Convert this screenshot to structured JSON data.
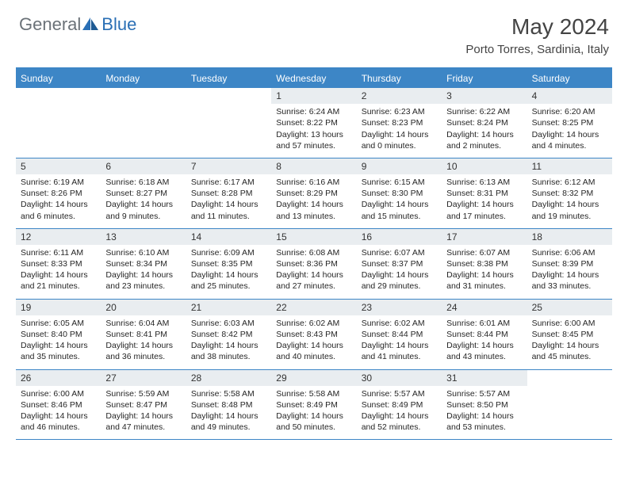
{
  "brand": {
    "text1": "General",
    "text2": "Blue"
  },
  "title": "May 2024",
  "location": "Porto Torres, Sardinia, Italy",
  "colors": {
    "header_bg": "#3d86c6",
    "header_text": "#ffffff",
    "daynum_bg": "#e9edf0",
    "body_text": "#262626",
    "logo_gray": "#6b7278",
    "logo_blue": "#2a6fb5"
  },
  "weekdays": [
    "Sunday",
    "Monday",
    "Tuesday",
    "Wednesday",
    "Thursday",
    "Friday",
    "Saturday"
  ],
  "weeks": [
    [
      null,
      null,
      null,
      {
        "n": "1",
        "sr": "6:24 AM",
        "ss": "8:22 PM",
        "dl": "13 hours and 57 minutes."
      },
      {
        "n": "2",
        "sr": "6:23 AM",
        "ss": "8:23 PM",
        "dl": "14 hours and 0 minutes."
      },
      {
        "n": "3",
        "sr": "6:22 AM",
        "ss": "8:24 PM",
        "dl": "14 hours and 2 minutes."
      },
      {
        "n": "4",
        "sr": "6:20 AM",
        "ss": "8:25 PM",
        "dl": "14 hours and 4 minutes."
      }
    ],
    [
      {
        "n": "5",
        "sr": "6:19 AM",
        "ss": "8:26 PM",
        "dl": "14 hours and 6 minutes."
      },
      {
        "n": "6",
        "sr": "6:18 AM",
        "ss": "8:27 PM",
        "dl": "14 hours and 9 minutes."
      },
      {
        "n": "7",
        "sr": "6:17 AM",
        "ss": "8:28 PM",
        "dl": "14 hours and 11 minutes."
      },
      {
        "n": "8",
        "sr": "6:16 AM",
        "ss": "8:29 PM",
        "dl": "14 hours and 13 minutes."
      },
      {
        "n": "9",
        "sr": "6:15 AM",
        "ss": "8:30 PM",
        "dl": "14 hours and 15 minutes."
      },
      {
        "n": "10",
        "sr": "6:13 AM",
        "ss": "8:31 PM",
        "dl": "14 hours and 17 minutes."
      },
      {
        "n": "11",
        "sr": "6:12 AM",
        "ss": "8:32 PM",
        "dl": "14 hours and 19 minutes."
      }
    ],
    [
      {
        "n": "12",
        "sr": "6:11 AM",
        "ss": "8:33 PM",
        "dl": "14 hours and 21 minutes."
      },
      {
        "n": "13",
        "sr": "6:10 AM",
        "ss": "8:34 PM",
        "dl": "14 hours and 23 minutes."
      },
      {
        "n": "14",
        "sr": "6:09 AM",
        "ss": "8:35 PM",
        "dl": "14 hours and 25 minutes."
      },
      {
        "n": "15",
        "sr": "6:08 AM",
        "ss": "8:36 PM",
        "dl": "14 hours and 27 minutes."
      },
      {
        "n": "16",
        "sr": "6:07 AM",
        "ss": "8:37 PM",
        "dl": "14 hours and 29 minutes."
      },
      {
        "n": "17",
        "sr": "6:07 AM",
        "ss": "8:38 PM",
        "dl": "14 hours and 31 minutes."
      },
      {
        "n": "18",
        "sr": "6:06 AM",
        "ss": "8:39 PM",
        "dl": "14 hours and 33 minutes."
      }
    ],
    [
      {
        "n": "19",
        "sr": "6:05 AM",
        "ss": "8:40 PM",
        "dl": "14 hours and 35 minutes."
      },
      {
        "n": "20",
        "sr": "6:04 AM",
        "ss": "8:41 PM",
        "dl": "14 hours and 36 minutes."
      },
      {
        "n": "21",
        "sr": "6:03 AM",
        "ss": "8:42 PM",
        "dl": "14 hours and 38 minutes."
      },
      {
        "n": "22",
        "sr": "6:02 AM",
        "ss": "8:43 PM",
        "dl": "14 hours and 40 minutes."
      },
      {
        "n": "23",
        "sr": "6:02 AM",
        "ss": "8:44 PM",
        "dl": "14 hours and 41 minutes."
      },
      {
        "n": "24",
        "sr": "6:01 AM",
        "ss": "8:44 PM",
        "dl": "14 hours and 43 minutes."
      },
      {
        "n": "25",
        "sr": "6:00 AM",
        "ss": "8:45 PM",
        "dl": "14 hours and 45 minutes."
      }
    ],
    [
      {
        "n": "26",
        "sr": "6:00 AM",
        "ss": "8:46 PM",
        "dl": "14 hours and 46 minutes."
      },
      {
        "n": "27",
        "sr": "5:59 AM",
        "ss": "8:47 PM",
        "dl": "14 hours and 47 minutes."
      },
      {
        "n": "28",
        "sr": "5:58 AM",
        "ss": "8:48 PM",
        "dl": "14 hours and 49 minutes."
      },
      {
        "n": "29",
        "sr": "5:58 AM",
        "ss": "8:49 PM",
        "dl": "14 hours and 50 minutes."
      },
      {
        "n": "30",
        "sr": "5:57 AM",
        "ss": "8:49 PM",
        "dl": "14 hours and 52 minutes."
      },
      {
        "n": "31",
        "sr": "5:57 AM",
        "ss": "8:50 PM",
        "dl": "14 hours and 53 minutes."
      },
      null
    ]
  ],
  "labels": {
    "sunrise": "Sunrise:",
    "sunset": "Sunset:",
    "daylight": "Daylight:"
  }
}
